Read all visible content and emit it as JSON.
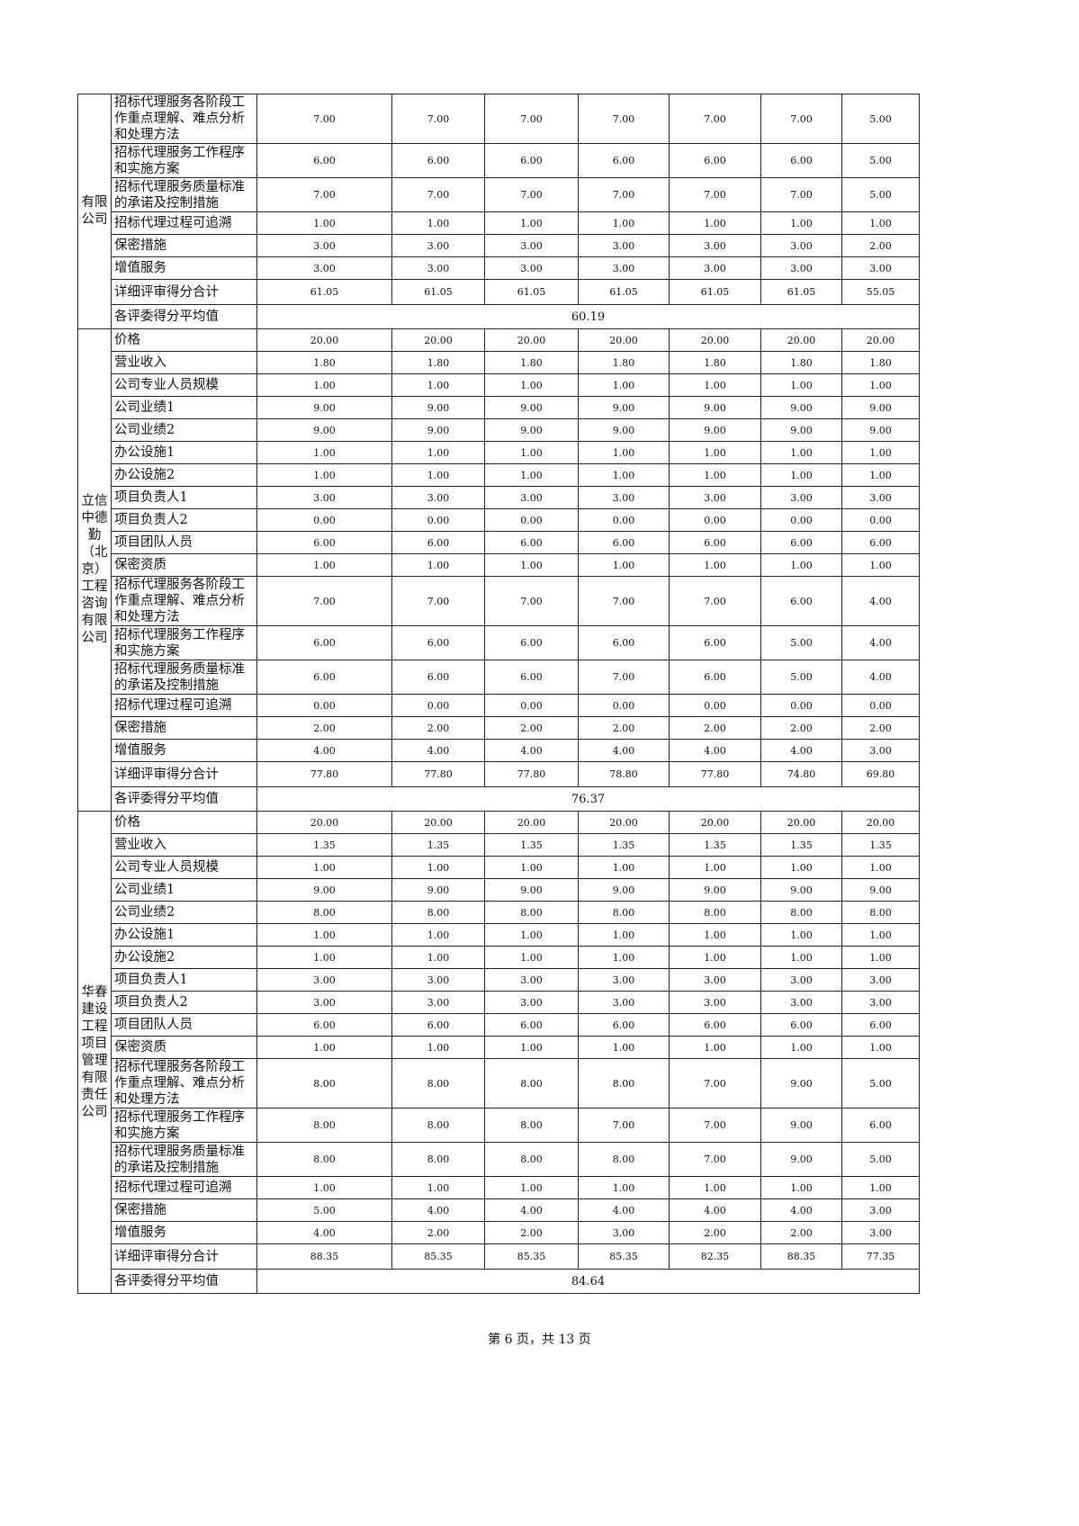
{
  "sections": [
    {
      "company": "有限公司",
      "rows": [
        {
          "item": "招标代理服务各阶段工作重点理解、难点分析和处理方法",
          "h": 3,
          "scores": [
            "7.00",
            "7.00",
            "7.00",
            "7.00",
            "7.00",
            "7.00",
            "5.00"
          ]
        },
        {
          "item": "招标代理服务工作程序和实施方案",
          "h": 2,
          "scores": [
            "6.00",
            "6.00",
            "6.00",
            "6.00",
            "6.00",
            "6.00",
            "5.00"
          ]
        },
        {
          "item": "招标代理服务质量标准的承诺及控制措施",
          "h": 2,
          "scores": [
            "7.00",
            "7.00",
            "7.00",
            "7.00",
            "7.00",
            "7.00",
            "5.00"
          ]
        },
        {
          "item": "招标代理过程可追溯",
          "h": 1,
          "scores": [
            "1.00",
            "1.00",
            "1.00",
            "1.00",
            "1.00",
            "1.00",
            "1.00"
          ]
        },
        {
          "item": "保密措施",
          "h": 1,
          "scores": [
            "3.00",
            "3.00",
            "3.00",
            "3.00",
            "3.00",
            "3.00",
            "2.00"
          ]
        },
        {
          "item": "增值服务",
          "h": 1,
          "scores": [
            "3.00",
            "3.00",
            "3.00",
            "3.00",
            "3.00",
            "3.00",
            "3.00"
          ]
        },
        {
          "item": "详细评审得分合计",
          "h": "t",
          "scores": [
            "61.05",
            "61.05",
            "61.05",
            "61.05",
            "61.05",
            "61.05",
            "55.05"
          ]
        }
      ],
      "average_label": "各评委得分平均值",
      "average": "60.19"
    },
    {
      "company": "立信中德勤（北京）工程咨询有限公司",
      "rows": [
        {
          "item": "价格",
          "h": 1,
          "scores": [
            "20.00",
            "20.00",
            "20.00",
            "20.00",
            "20.00",
            "20.00",
            "20.00"
          ]
        },
        {
          "item": "营业收入",
          "h": 1,
          "scores": [
            "1.80",
            "1.80",
            "1.80",
            "1.80",
            "1.80",
            "1.80",
            "1.80"
          ]
        },
        {
          "item": "公司专业人员规模",
          "h": 1,
          "scores": [
            "1.00",
            "1.00",
            "1.00",
            "1.00",
            "1.00",
            "1.00",
            "1.00"
          ]
        },
        {
          "item": "公司业绩1",
          "h": 1,
          "scores": [
            "9.00",
            "9.00",
            "9.00",
            "9.00",
            "9.00",
            "9.00",
            "9.00"
          ]
        },
        {
          "item": "公司业绩2",
          "h": 1,
          "scores": [
            "9.00",
            "9.00",
            "9.00",
            "9.00",
            "9.00",
            "9.00",
            "9.00"
          ]
        },
        {
          "item": "办公设施1",
          "h": 1,
          "scores": [
            "1.00",
            "1.00",
            "1.00",
            "1.00",
            "1.00",
            "1.00",
            "1.00"
          ]
        },
        {
          "item": "办公设施2",
          "h": 1,
          "scores": [
            "1.00",
            "1.00",
            "1.00",
            "1.00",
            "1.00",
            "1.00",
            "1.00"
          ]
        },
        {
          "item": "项目负责人1",
          "h": 1,
          "scores": [
            "3.00",
            "3.00",
            "3.00",
            "3.00",
            "3.00",
            "3.00",
            "3.00"
          ]
        },
        {
          "item": "项目负责人2",
          "h": 1,
          "scores": [
            "0.00",
            "0.00",
            "0.00",
            "0.00",
            "0.00",
            "0.00",
            "0.00"
          ]
        },
        {
          "item": "项目团队人员",
          "h": 1,
          "scores": [
            "6.00",
            "6.00",
            "6.00",
            "6.00",
            "6.00",
            "6.00",
            "6.00"
          ]
        },
        {
          "item": "保密资质",
          "h": 1,
          "scores": [
            "1.00",
            "1.00",
            "1.00",
            "1.00",
            "1.00",
            "1.00",
            "1.00"
          ]
        },
        {
          "item": "招标代理服务各阶段工作重点理解、难点分析和处理方法",
          "h": 3,
          "scores": [
            "7.00",
            "7.00",
            "7.00",
            "7.00",
            "7.00",
            "6.00",
            "4.00"
          ]
        },
        {
          "item": "招标代理服务工作程序和实施方案",
          "h": 2,
          "scores": [
            "6.00",
            "6.00",
            "6.00",
            "6.00",
            "6.00",
            "5.00",
            "4.00"
          ]
        },
        {
          "item": "招标代理服务质量标准的承诺及控制措施",
          "h": 2,
          "scores": [
            "6.00",
            "6.00",
            "6.00",
            "7.00",
            "6.00",
            "5.00",
            "4.00"
          ]
        },
        {
          "item": "招标代理过程可追溯",
          "h": 1,
          "scores": [
            "0.00",
            "0.00",
            "0.00",
            "0.00",
            "0.00",
            "0.00",
            "0.00"
          ]
        },
        {
          "item": "保密措施",
          "h": 1,
          "scores": [
            "2.00",
            "2.00",
            "2.00",
            "2.00",
            "2.00",
            "2.00",
            "2.00"
          ]
        },
        {
          "item": "增值服务",
          "h": 1,
          "scores": [
            "4.00",
            "4.00",
            "4.00",
            "4.00",
            "4.00",
            "4.00",
            "3.00"
          ]
        },
        {
          "item": "详细评审得分合计",
          "h": "t",
          "scores": [
            "77.80",
            "77.80",
            "77.80",
            "78.80",
            "77.80",
            "74.80",
            "69.80"
          ]
        }
      ],
      "average_label": "各评委得分平均值",
      "average": "76.37"
    },
    {
      "company": "华春建设工程项目管理有限责任公司",
      "rows": [
        {
          "item": "价格",
          "h": 1,
          "scores": [
            "20.00",
            "20.00",
            "20.00",
            "20.00",
            "20.00",
            "20.00",
            "20.00"
          ]
        },
        {
          "item": "营业收入",
          "h": 1,
          "scores": [
            "1.35",
            "1.35",
            "1.35",
            "1.35",
            "1.35",
            "1.35",
            "1.35"
          ]
        },
        {
          "item": "公司专业人员规模",
          "h": 1,
          "scores": [
            "1.00",
            "1.00",
            "1.00",
            "1.00",
            "1.00",
            "1.00",
            "1.00"
          ]
        },
        {
          "item": "公司业绩1",
          "h": 1,
          "scores": [
            "9.00",
            "9.00",
            "9.00",
            "9.00",
            "9.00",
            "9.00",
            "9.00"
          ]
        },
        {
          "item": "公司业绩2",
          "h": 1,
          "scores": [
            "8.00",
            "8.00",
            "8.00",
            "8.00",
            "8.00",
            "8.00",
            "8.00"
          ]
        },
        {
          "item": "办公设施1",
          "h": 1,
          "scores": [
            "1.00",
            "1.00",
            "1.00",
            "1.00",
            "1.00",
            "1.00",
            "1.00"
          ]
        },
        {
          "item": "办公设施2",
          "h": 1,
          "scores": [
            "1.00",
            "1.00",
            "1.00",
            "1.00",
            "1.00",
            "1.00",
            "1.00"
          ]
        },
        {
          "item": "项目负责人1",
          "h": 1,
          "scores": [
            "3.00",
            "3.00",
            "3.00",
            "3.00",
            "3.00",
            "3.00",
            "3.00"
          ]
        },
        {
          "item": "项目负责人2",
          "h": 1,
          "scores": [
            "3.00",
            "3.00",
            "3.00",
            "3.00",
            "3.00",
            "3.00",
            "3.00"
          ]
        },
        {
          "item": "项目团队人员",
          "h": 1,
          "scores": [
            "6.00",
            "6.00",
            "6.00",
            "6.00",
            "6.00",
            "6.00",
            "6.00"
          ]
        },
        {
          "item": "保密资质",
          "h": 1,
          "scores": [
            "1.00",
            "1.00",
            "1.00",
            "1.00",
            "1.00",
            "1.00",
            "1.00"
          ]
        },
        {
          "item": "招标代理服务各阶段工作重点理解、难点分析和处理方法",
          "h": 3,
          "scores": [
            "8.00",
            "8.00",
            "8.00",
            "8.00",
            "7.00",
            "9.00",
            "5.00"
          ]
        },
        {
          "item": "招标代理服务工作程序和实施方案",
          "h": 2,
          "scores": [
            "8.00",
            "8.00",
            "8.00",
            "7.00",
            "7.00",
            "9.00",
            "6.00"
          ]
        },
        {
          "item": "招标代理服务质量标准的承诺及控制措施",
          "h": 2,
          "scores": [
            "8.00",
            "8.00",
            "8.00",
            "8.00",
            "7.00",
            "9.00",
            "5.00"
          ]
        },
        {
          "item": "招标代理过程可追溯",
          "h": 1,
          "scores": [
            "1.00",
            "1.00",
            "1.00",
            "1.00",
            "1.00",
            "1.00",
            "1.00"
          ]
        },
        {
          "item": "保密措施",
          "h": 1,
          "scores": [
            "5.00",
            "4.00",
            "4.00",
            "4.00",
            "4.00",
            "4.00",
            "3.00"
          ]
        },
        {
          "item": "增值服务",
          "h": 1,
          "scores": [
            "4.00",
            "2.00",
            "2.00",
            "3.00",
            "2.00",
            "2.00",
            "3.00"
          ]
        },
        {
          "item": "详细评审得分合计",
          "h": "t",
          "scores": [
            "88.35",
            "85.35",
            "85.35",
            "85.35",
            "82.35",
            "88.35",
            "77.35"
          ]
        }
      ],
      "average_label": "各评委得分平均值",
      "average": "84.64"
    }
  ],
  "footer": "第 6 页，共 13 页"
}
